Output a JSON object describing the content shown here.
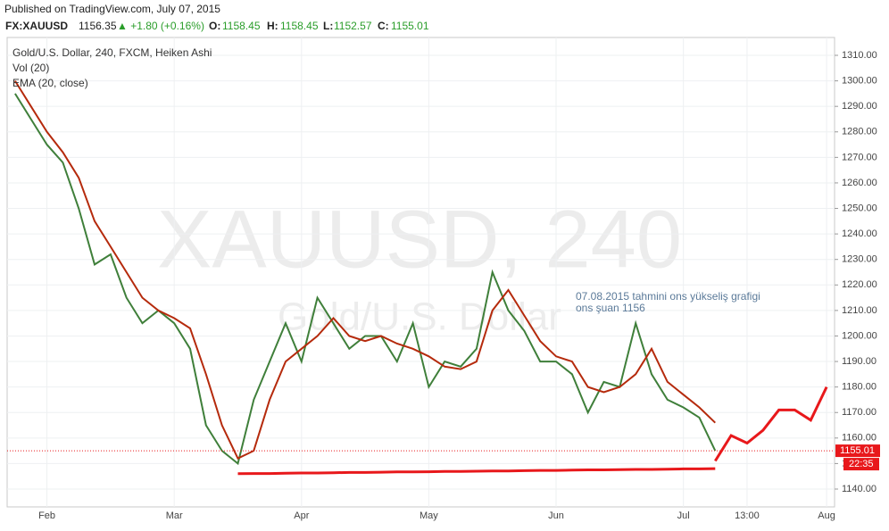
{
  "header": {
    "published": "Published on TradingView.com, July 07, 2015"
  },
  "quote": {
    "symbol": "FX:XAUUSD",
    "last": "1156.35",
    "change": "▲ +1.80 (+0.16%)",
    "open_label": "O:",
    "open": "1158.45",
    "high_label": "H:",
    "high": "1158.45",
    "low_label": "L:",
    "low": "1152.57",
    "close_label": "C:",
    "close": "1155.01"
  },
  "chart_data": {
    "type": "line",
    "watermark": "XAUUSD, 240",
    "watermark_subtitle": "Gold/U.S. Dollar",
    "indicator": "Vol (20)",
    "annotations": [
      "07.08.2015 tahmini ons yükseliş grafigi",
      "ons şuan 1156"
    ],
    "categories": [
      null,
      null,
      "Feb",
      null,
      null,
      null,
      null,
      null,
      null,
      null,
      "Mar",
      null,
      null,
      null,
      null,
      null,
      null,
      null,
      "Apr",
      null,
      null,
      null,
      null,
      null,
      null,
      null,
      "May",
      null,
      null,
      null,
      null,
      null,
      null,
      null,
      "Jun",
      null,
      null,
      null,
      null,
      null,
      null,
      null,
      "Jul",
      null,
      null,
      null,
      "13:00",
      null,
      null,
      null,
      null,
      "Aug"
    ],
    "series": [
      {
        "name": "Gold/U.S. Dollar, 240, FXCM, Heiken Ashi",
        "color": "#3f7f3a",
        "values": [
          1295,
          1285,
          1275,
          1268,
          1250,
          1228,
          1232,
          1215,
          1205,
          1210,
          1205,
          1195,
          1165,
          1155,
          1150,
          1175,
          1190,
          1205,
          1190,
          1215,
          1205,
          1195,
          1200,
          1200,
          1190,
          1205,
          1180,
          1190,
          1188,
          1195,
          1225,
          1210,
          1202,
          1190,
          1190,
          1185,
          1170,
          1182,
          1180,
          1205,
          1185,
          1175,
          1172,
          1168,
          1155,
          null,
          null,
          null,
          null,
          null,
          null,
          null
        ]
      },
      {
        "name": "EMA (20, close)",
        "color": "#b52a0c",
        "values": [
          1300,
          1290,
          1280,
          1272,
          1262,
          1245,
          1235,
          1225,
          1215,
          1210,
          1207,
          1203,
          1185,
          1165,
          1152,
          1155,
          1175,
          1190,
          1195,
          1200,
          1207,
          1200,
          1198,
          1200,
          1197,
          1195,
          1192,
          1188,
          1187,
          1190,
          1210,
          1218,
          1208,
          1198,
          1192,
          1190,
          1180,
          1178,
          1180,
          1185,
          1195,
          1182,
          1177,
          1172,
          1166,
          null,
          null,
          null,
          null,
          null,
          null,
          null
        ]
      },
      {
        "color": "#e8181b",
        "values": [
          null,
          null,
          null,
          null,
          null,
          null,
          null,
          null,
          null,
          null,
          null,
          null,
          null,
          null,
          null,
          null,
          null,
          null,
          null,
          null,
          null,
          null,
          null,
          null,
          null,
          null,
          null,
          null,
          null,
          null,
          null,
          null,
          null,
          null,
          null,
          null,
          null,
          null,
          null,
          null,
          null,
          null,
          null,
          null,
          1151,
          1161,
          1158,
          1163,
          1171,
          1171,
          1167,
          1180
        ]
      },
      {
        "color": "#e8181b",
        "values": [
          null,
          null,
          null,
          null,
          null,
          null,
          null,
          null,
          null,
          null,
          null,
          null,
          null,
          null,
          1146.0,
          1146.1,
          1146.1,
          1146.2,
          1146.3,
          1146.3,
          1146.4,
          1146.5,
          1146.5,
          1146.6,
          1146.7,
          1146.7,
          1146.8,
          1146.9,
          1146.9,
          1147.0,
          1147.1,
          1147.1,
          1147.2,
          1147.3,
          1147.3,
          1147.4,
          1147.5,
          1147.5,
          1147.6,
          1147.7,
          1147.7,
          1147.8,
          1147.9,
          1147.9,
          1148.0,
          null,
          null,
          null,
          null,
          null,
          null,
          null
        ]
      }
    ],
    "ylim": [
      1133,
      1317
    ],
    "yticks": [
      {
        "value": 1140,
        "label": "1140.00"
      },
      {
        "value": 1150,
        "label": "1150.00"
      },
      {
        "value": 1160,
        "label": "1160.00"
      },
      {
        "value": 1170,
        "label": "1170.00"
      },
      {
        "value": 1180,
        "label": "1180.00"
      },
      {
        "value": 1190,
        "label": "1190.00"
      },
      {
        "value": 1200,
        "label": "1200.00"
      },
      {
        "value": 1210,
        "label": "1210.00"
      },
      {
        "value": 1220,
        "label": "1220.00"
      },
      {
        "value": 1230,
        "label": "1230.00"
      },
      {
        "value": 1240,
        "label": "1240.00"
      },
      {
        "value": 1250,
        "label": "1250.00"
      },
      {
        "value": 1260,
        "label": "1260.00"
      },
      {
        "value": 1270,
        "label": "1270.00"
      },
      {
        "value": 1280,
        "label": "1280.00"
      },
      {
        "value": 1290,
        "label": "1290.00"
      },
      {
        "value": 1300,
        "label": "1300.00"
      },
      {
        "value": 1310,
        "label": "1310.00"
      }
    ],
    "last_price": {
      "value": 1155.01,
      "label": "1155.01",
      "color": "#e8181b"
    },
    "last_time": "22:35",
    "grid": true
  }
}
